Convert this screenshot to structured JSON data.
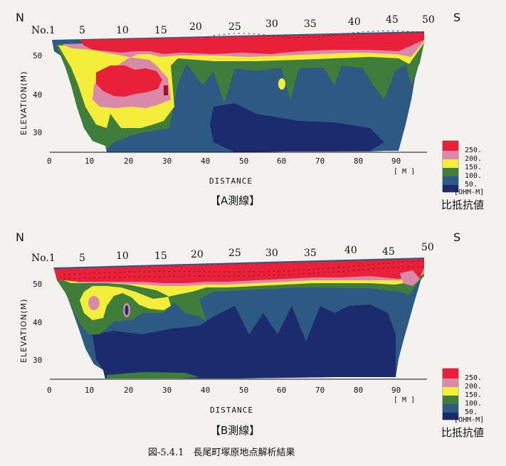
{
  "panels": [
    {
      "id": "A",
      "north_label": "N",
      "south_label": "S",
      "station_labels": [
        "No.1",
        "5",
        "10",
        "15",
        "20",
        "25",
        "30",
        "35",
        "40",
        "45",
        "50"
      ],
      "elevation_axis_label": "ELEVATION(M)",
      "elevation_ticks": [
        "50",
        "40",
        "30"
      ],
      "distance_ticks": [
        "0",
        "10",
        "20",
        "30",
        "40",
        "50",
        "60",
        "70",
        "80",
        "90"
      ],
      "distance_unit": "[ M ]",
      "distance_axis_label": "DISTANCE",
      "caption": "【A測線】"
    },
    {
      "id": "B",
      "north_label": "N",
      "south_label": "S",
      "station_labels": [
        "No.1",
        "5",
        "10",
        "15",
        "20",
        "25",
        "30",
        "35",
        "40",
        "45",
        "50"
      ],
      "elevation_axis_label": "ELEVATION(M)",
      "elevation_ticks": [
        "50",
        "40",
        "30"
      ],
      "distance_ticks": [
        "0",
        "10",
        "20",
        "30",
        "40",
        "50",
        "60",
        "70",
        "80",
        "90"
      ],
      "distance_unit": "[ M ]",
      "distance_axis_label": "DISTANCE",
      "caption": "【B測線】"
    }
  ],
  "legend": {
    "entries": [
      {
        "label": "250.",
        "color": "#e8203a"
      },
      {
        "label": "200.",
        "color": "#d98aa8"
      },
      {
        "label": "150.",
        "color": "#f4ee3a"
      },
      {
        "label": "100.",
        "color": "#3f7d3a"
      },
      {
        "label": "50.",
        "color": "#2c5a82"
      }
    ],
    "low_color": "#1c2a6e",
    "unit": "[OHM-M]",
    "title": "比抵抗値"
  },
  "figure_caption": "図-5.4.1　長尾町塚原地点解析結果"
}
